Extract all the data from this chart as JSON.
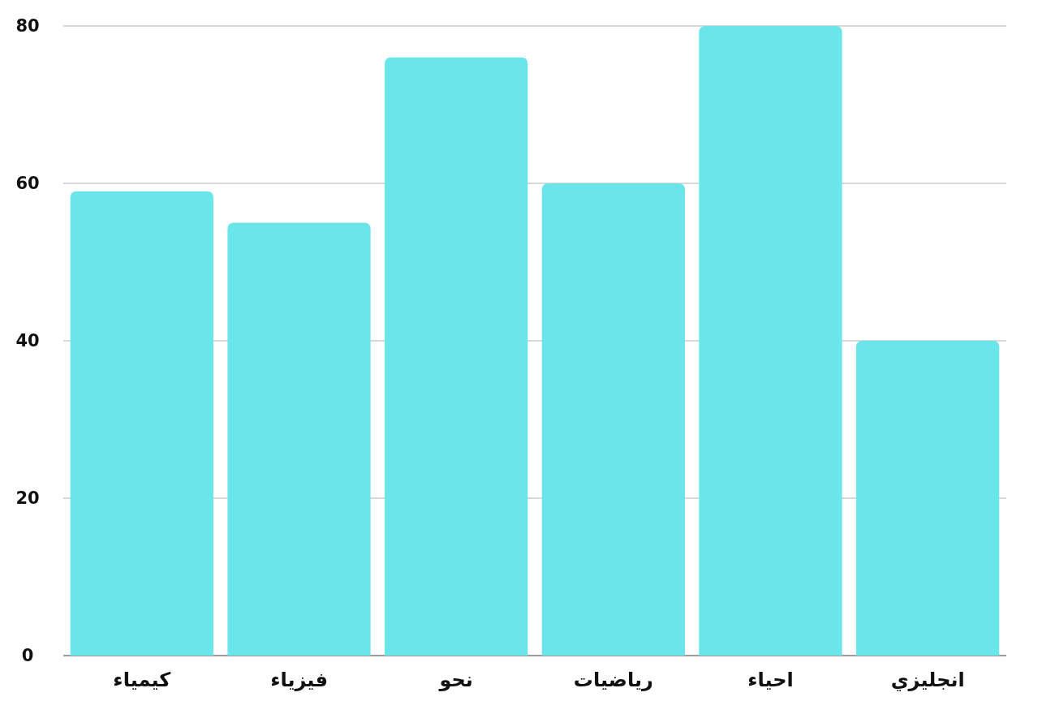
{
  "chart_data": {
    "type": "bar",
    "categories": [
      "كيمياء",
      "فيزياء",
      "نحو",
      "رياضيات",
      "احياء",
      "انجليزي"
    ],
    "values": [
      59,
      55,
      76,
      60,
      80,
      40
    ],
    "color": "#6ae5e9",
    "ylim": [
      0,
      80
    ],
    "yticks": [
      0,
      20,
      40,
      60,
      80
    ],
    "grid": "y"
  }
}
